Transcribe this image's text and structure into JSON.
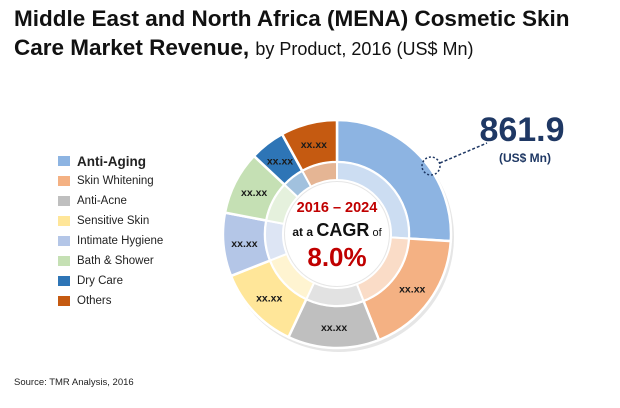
{
  "title": {
    "main": "Middle East and North Africa (MENA) Cosmetic Skin Care Market Revenue,",
    "sub": "by Product, 2016 (US$ Mn)"
  },
  "source": "Source: TMR Analysis, 2016",
  "center": {
    "years": "2016 – 2024",
    "at_a": "at a",
    "cagr": "CAGR",
    "of": "of",
    "rate": "8.0%"
  },
  "callout": {
    "value": "861.9",
    "unit": "(US$ Mn)"
  },
  "chart_data": {
    "type": "pie",
    "variant": "donut",
    "title": "Middle East and North Africa (MENA) Cosmetic Skin Care Market Revenue, by Product, 2016 (US$ Mn)",
    "categories": [
      "Anti-Aging",
      "Skin Whitening",
      "Anti-Acne",
      "Sensitive Skin",
      "Intimate Hygiene",
      "Bath & Shower",
      "Dry Care",
      "Others"
    ],
    "values": [
      26,
      18,
      13,
      12,
      9,
      9,
      5,
      8
    ],
    "labels": [
      "",
      "xx.xx",
      "xx.xx",
      "xx.xx",
      "xx.xx",
      "xx.xx",
      "xx.xx",
      "xx.xx"
    ],
    "colors": [
      "#8db4e2",
      "#f4b183",
      "#bfbfbf",
      "#ffe699",
      "#b4c6e7",
      "#c5e0b4",
      "#2e75b6",
      "#c55a11"
    ],
    "highlight": {
      "category": "Anti-Aging",
      "value": 861.9,
      "unit": "US$ Mn"
    },
    "legend_position": "left"
  }
}
